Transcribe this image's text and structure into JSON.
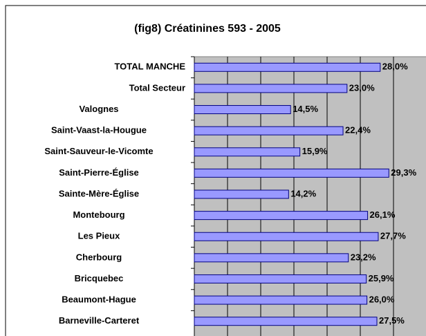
{
  "chart_data": {
    "type": "bar",
    "orientation": "horizontal",
    "title": "(fig8) Créatinines 593 - 2005",
    "categories": [
      "TOTAL MANCHE",
      "Total Secteur",
      "Valognes",
      "Saint-Vaast-la-Hougue",
      "Saint-Sauveur-le-Vicomte",
      "Saint-Pierre-Église",
      "Sainte-Mère-Église",
      "Montebourg",
      "Les Pieux",
      "Cherbourg",
      "Bricquebec",
      "Beaumont-Hague",
      "Barneville-Carteret"
    ],
    "values": [
      28.0,
      23.0,
      14.5,
      22.4,
      15.9,
      29.3,
      14.2,
      26.1,
      27.7,
      23.2,
      25.9,
      26.0,
      27.5
    ],
    "value_labels": [
      "28,0%",
      "23,0%",
      "14,5%",
      "22,4%",
      "15,9%",
      "29,3%",
      "14,2%",
      "26,1%",
      "27,7%",
      "23,2%",
      "25,9%",
      "26,0%",
      "27,5%"
    ],
    "color": "#9999ff",
    "xlim": [
      0,
      35
    ],
    "xticks": [
      0,
      5,
      10,
      15,
      20,
      25,
      30,
      35
    ],
    "grid": true
  }
}
